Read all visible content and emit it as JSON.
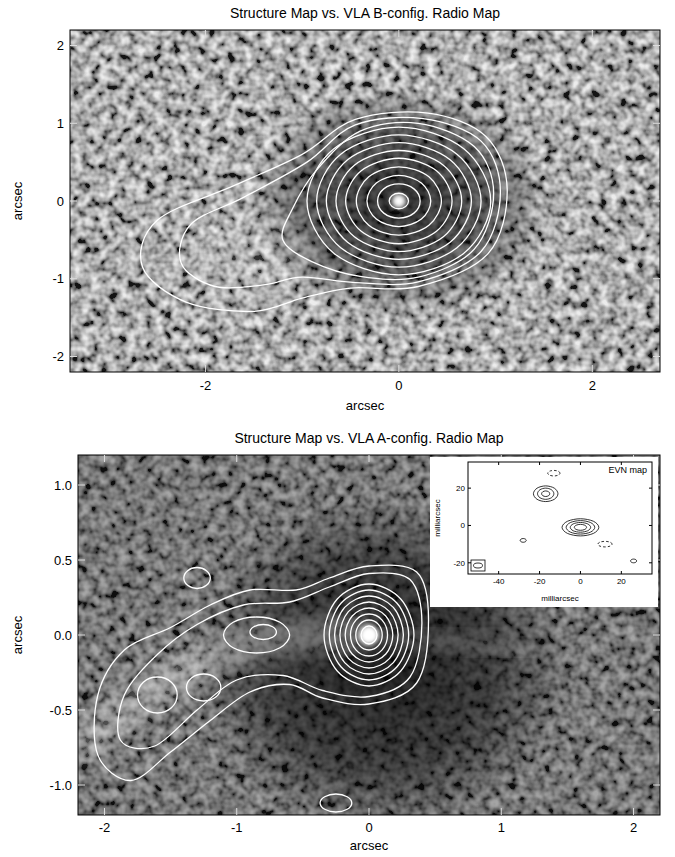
{
  "chart_data": [
    {
      "type": "contour",
      "title": "Structure Map vs. VLA B-config. Radio Map",
      "x_label": "arcsec",
      "y_label": "arcsec",
      "xlim": [
        -3.4,
        2.7
      ],
      "ylim": [
        -2.2,
        2.2
      ],
      "xticks": [
        -2,
        0,
        2
      ],
      "yticks": [
        -2,
        -1,
        0,
        1,
        2
      ],
      "color": "#ffffff",
      "contours": [
        {
          "x": [
            0.1,
            0.07,
            0,
            -0.07,
            -0.1,
            -0.07,
            0,
            0.07
          ],
          "y": [
            0,
            0.07,
            0.1,
            0.07,
            0,
            -0.07,
            -0.1,
            -0.07
          ],
          "line_style": "solid"
        },
        {
          "x": [
            0.22,
            0.156,
            0,
            -0.156,
            -0.22,
            -0.156,
            0,
            0.156
          ],
          "y": [
            0,
            0.156,
            0.22,
            0.156,
            0,
            -0.156,
            -0.22,
            -0.156
          ],
          "line_style": "solid"
        },
        {
          "x": [
            0.33,
            0.233,
            0,
            -0.233,
            -0.33,
            -0.233,
            0,
            0.233
          ],
          "y": [
            0,
            0.233,
            0.33,
            0.233,
            0,
            -0.233,
            -0.33,
            -0.233
          ],
          "line_style": "solid"
        },
        {
          "x": [
            0.44,
            0.311,
            0,
            -0.311,
            -0.44,
            -0.311,
            0,
            0.311
          ],
          "y": [
            0,
            0.311,
            0.44,
            0.311,
            0,
            -0.311,
            -0.44,
            -0.311
          ],
          "line_style": "solid"
        },
        {
          "x": [
            0.55,
            0.389,
            0,
            -0.389,
            -0.55,
            -0.389,
            0,
            0.389
          ],
          "y": [
            0,
            0.389,
            0.55,
            0.389,
            0,
            -0.389,
            -0.55,
            -0.389
          ],
          "line_style": "solid"
        },
        {
          "x": [
            0.65,
            0.46,
            0,
            -0.46,
            -0.65,
            -0.46,
            0,
            0.46
          ],
          "y": [
            0,
            0.46,
            0.65,
            0.46,
            0,
            -0.46,
            -0.65,
            -0.46
          ],
          "line_style": "solid"
        },
        {
          "x": [
            0.75,
            0.53,
            0,
            -0.53,
            -0.75,
            -0.53,
            0,
            0.53
          ],
          "y": [
            0,
            0.53,
            0.75,
            0.53,
            0,
            -0.53,
            -0.75,
            -0.53
          ],
          "line_style": "solid"
        },
        {
          "x": [
            0.85,
            0.601,
            0,
            -0.601,
            -0.85,
            -0.601,
            0,
            0.601
          ],
          "y": [
            0,
            0.601,
            0.85,
            0.601,
            0,
            -0.601,
            -0.85,
            -0.601
          ],
          "line_style": "solid"
        },
        {
          "x": [
            0.95,
            0.672,
            0,
            -0.672,
            -0.95,
            -0.672,
            0,
            0.672
          ],
          "y": [
            0,
            0.672,
            0.95,
            0.672,
            0,
            -0.672,
            -0.95,
            -0.672
          ],
          "line_style": "solid"
        },
        {
          "x": [
            0.98,
            0.78,
            0.2,
            -0.4,
            -0.85,
            -1.1,
            -1.2,
            -0.9,
            -0.4,
            0.2,
            0.78
          ],
          "y": [
            0.1,
            0.7,
            1.0,
            0.9,
            0.4,
            -0.1,
            -0.5,
            -0.78,
            -0.97,
            -0.98,
            -0.62
          ],
          "line_style": "solid"
        },
        {
          "x": [
            1.05,
            0.85,
            0.25,
            -0.45,
            -0.95,
            -1.6,
            -2.15,
            -2.25,
            -1.9,
            -1.4,
            -1.0,
            -0.45,
            0.2,
            0.85
          ],
          "y": [
            0.12,
            0.77,
            1.06,
            0.98,
            0.5,
            0.05,
            -0.3,
            -0.8,
            -1.1,
            -1.08,
            -0.98,
            -1.05,
            -1.04,
            -0.65
          ],
          "line_style": "solid"
        },
        {
          "x": [
            1.12,
            0.9,
            0.3,
            -0.45,
            -1.0,
            -1.7,
            -2.5,
            -2.65,
            -2.2,
            -1.5,
            -1.0,
            -0.5,
            0.2,
            0.92
          ],
          "y": [
            0.15,
            0.83,
            1.13,
            1.05,
            0.6,
            0.2,
            -0.25,
            -0.85,
            -1.3,
            -1.42,
            -1.25,
            -1.12,
            -1.1,
            -0.68
          ],
          "line_style": "solid"
        }
      ]
    },
    {
      "type": "contour",
      "title": "Structure Map vs. VLA A-config. Radio Map",
      "x_label": "arcsec",
      "y_label": "arcsec",
      "xlim": [
        -2.2,
        2.2
      ],
      "ylim": [
        -1.2,
        1.2
      ],
      "xticks": [
        -2,
        -1,
        0,
        1,
        2
      ],
      "yticks": [
        {
          "value": 1,
          "label": "1.0"
        },
        {
          "value": 0.5,
          "label": "0.5"
        },
        {
          "value": 0,
          "label": "0.0"
        },
        {
          "value": -0.5,
          "label": "-0.5"
        },
        {
          "value": -1,
          "label": "-1.0"
        }
      ],
      "color": "#ffffff",
      "contours": [
        {
          "x": [
            0.06,
            0.042,
            0,
            -0.042,
            -0.06,
            -0.042,
            0,
            0.042
          ],
          "y": [
            0,
            0.042,
            0.06,
            0.042,
            0,
            -0.042,
            -0.06,
            -0.042
          ],
          "line_style": "solid"
        },
        {
          "x": [
            0.1,
            0.071,
            0,
            -0.071,
            -0.1,
            -0.071,
            0,
            0.071
          ],
          "y": [
            0,
            0.071,
            0.1,
            0.071,
            0,
            -0.071,
            -0.1,
            -0.071
          ],
          "line_style": "solid"
        },
        {
          "x": [
            0.14,
            0.099,
            0,
            -0.099,
            -0.14,
            -0.099,
            0,
            0.099
          ],
          "y": [
            0,
            0.099,
            0.14,
            0.099,
            0,
            -0.099,
            -0.14,
            -0.099
          ],
          "line_style": "solid"
        },
        {
          "x": [
            0.18,
            0.127,
            0,
            -0.127,
            -0.18,
            -0.127,
            0,
            0.127
          ],
          "y": [
            0,
            0.127,
            0.18,
            0.127,
            0,
            -0.127,
            -0.18,
            -0.127
          ],
          "line_style": "solid"
        },
        {
          "x": [
            0.22,
            0.156,
            0,
            -0.156,
            -0.22,
            -0.156,
            0,
            0.156
          ],
          "y": [
            0,
            0.156,
            0.22,
            0.156,
            0,
            -0.156,
            -0.22,
            -0.156
          ],
          "line_style": "solid"
        },
        {
          "x": [
            0.26,
            0.184,
            0,
            -0.184,
            -0.26,
            -0.184,
            0,
            0.184
          ],
          "y": [
            0,
            0.184,
            0.26,
            0.184,
            0,
            -0.184,
            -0.26,
            -0.184
          ],
          "line_style": "solid"
        },
        {
          "x": [
            0.3,
            0.212,
            0,
            -0.212,
            -0.3,
            -0.212,
            0,
            0.212
          ],
          "y": [
            0,
            0.212,
            0.3,
            0.212,
            0,
            -0.212,
            -0.3,
            -0.212
          ],
          "line_style": "solid"
        },
        {
          "x": [
            0.34,
            0.24,
            0,
            -0.24,
            -0.34,
            -0.24,
            0,
            0.24
          ],
          "y": [
            0,
            0.24,
            0.34,
            0.24,
            0,
            -0.24,
            -0.34,
            -0.24
          ],
          "line_style": "solid"
        },
        {
          "x": [
            0.4,
            0.31,
            0.0,
            -0.3,
            -0.6,
            -0.95,
            -1.3,
            -1.6,
            -1.85,
            -1.88,
            -1.62,
            -1.3,
            -1.0,
            -0.65,
            -0.35,
            0.0,
            0.31
          ],
          "y": [
            0.08,
            0.37,
            0.41,
            0.32,
            0.22,
            0.2,
            0.07,
            -0.13,
            -0.4,
            -0.7,
            -0.74,
            -0.5,
            -0.3,
            -0.27,
            -0.37,
            -0.41,
            -0.28
          ],
          "line_style": "solid"
        },
        {
          "x": [
            0.45,
            0.36,
            0.0,
            -0.3,
            -0.55,
            -0.9,
            -1.2,
            -1.5,
            -1.85,
            -2.05,
            -2.05,
            -1.8,
            -1.5,
            -1.2,
            -0.9,
            -0.6,
            -0.35,
            0.0,
            0.36
          ],
          "y": [
            0.1,
            0.42,
            0.46,
            0.38,
            0.3,
            0.3,
            0.2,
            0.05,
            -0.1,
            -0.4,
            -0.8,
            -0.97,
            -0.78,
            -0.57,
            -0.38,
            -0.33,
            -0.42,
            -0.46,
            -0.32
          ],
          "line_style": "solid"
        },
        {
          "x": [
            -0.6,
            -0.673,
            -0.85,
            -1.027,
            -1.1,
            -1.027,
            -0.85,
            -0.673
          ],
          "y": [
            0,
            0.085,
            0.12,
            0.085,
            0,
            -0.085,
            -0.12,
            -0.085
          ],
          "line_style": "solid"
        },
        {
          "x": [
            -0.7,
            -0.729,
            -0.8,
            -0.871,
            -0.9,
            -0.871,
            -0.8,
            -0.729
          ],
          "y": [
            0.02,
            0.055,
            0.07,
            0.055,
            0.02,
            -0.015,
            -0.03,
            -0.015
          ],
          "line_style": "solid"
        },
        {
          "x": [
            -1.45,
            -1.494,
            -1.6,
            -1.706,
            -1.75,
            -1.706,
            -1.6,
            -1.494
          ],
          "y": [
            -0.4,
            -0.315,
            -0.28,
            -0.315,
            -0.4,
            -0.485,
            -0.52,
            -0.485
          ],
          "line_style": "solid"
        },
        {
          "x": [
            -1.12,
            -1.158,
            -1.25,
            -1.342,
            -1.38,
            -1.342,
            -1.25,
            -1.158
          ],
          "y": [
            -0.35,
            -0.286,
            -0.26,
            -0.286,
            -0.35,
            -0.414,
            -0.44,
            -0.414
          ],
          "line_style": "solid"
        },
        {
          "x": [
            -1.2,
            -1.229,
            -1.3,
            -1.371,
            -1.4,
            -1.371,
            -1.3,
            -1.229
          ],
          "y": [
            0.38,
            0.429,
            0.45,
            0.429,
            0.38,
            0.331,
            0.31,
            0.331
          ],
          "line_style": "solid"
        },
        {
          "x": [
            -0.13,
            -0.165,
            -0.25,
            -0.335,
            -0.37,
            -0.335,
            -0.25,
            -0.165
          ],
          "y": [
            -1.12,
            -1.078,
            -1.06,
            -1.078,
            -1.12,
            -1.162,
            -1.18,
            -1.162
          ],
          "line_style": "solid"
        }
      ]
    },
    {
      "type": "contour",
      "title": "EVN map",
      "x_label": "milliarcsec",
      "y_label": "milliarcsec",
      "xlim": [
        -55,
        35
      ],
      "ylim": [
        -26,
        34
      ],
      "xticks": [
        -40,
        -20,
        0,
        20
      ],
      "yticks": [
        -20,
        0,
        20
      ],
      "color": "#000000",
      "contours": [
        {
          "x": [
            3,
            2.12,
            0,
            -2.12,
            -3,
            -2.12,
            0,
            2.12
          ],
          "y": [
            -1,
            0.13,
            0.6,
            0.13,
            -1,
            -2.13,
            -2.6,
            -2.13
          ],
          "line_style": "solid"
        },
        {
          "x": [
            5,
            3.54,
            0,
            -3.54,
            -5,
            -3.54,
            0,
            3.54
          ],
          "y": [
            -1,
            0.84,
            1.6,
            0.84,
            -1,
            -2.84,
            -3.6,
            -2.84
          ],
          "line_style": "solid"
        },
        {
          "x": [
            7,
            4.95,
            0,
            -4.95,
            -7,
            -4.95,
            0,
            4.95
          ],
          "y": [
            -1,
            1.55,
            2.6,
            1.55,
            -1,
            -3.55,
            -4.6,
            -3.55
          ],
          "line_style": "solid"
        },
        {
          "x": [
            9,
            6.36,
            0,
            -6.36,
            -9,
            -6.36,
            0,
            6.36
          ],
          "y": [
            -1,
            2.25,
            3.6,
            2.25,
            -1,
            -4.25,
            -5.6,
            -4.25
          ],
          "line_style": "solid"
        },
        {
          "x": [
            -15,
            -15.59,
            -17,
            -18.41,
            -19,
            -18.41,
            -17,
            -15.59
          ],
          "y": [
            17,
            18.06,
            18.5,
            18.06,
            17,
            15.94,
            15.5,
            15.94
          ],
          "line_style": "solid"
        },
        {
          "x": [
            -13,
            -14.17,
            -17,
            -19.83,
            -21,
            -19.83,
            -17,
            -14.17
          ],
          "y": [
            17,
            19.12,
            20,
            19.12,
            17,
            14.88,
            14,
            14.88
          ],
          "line_style": "solid"
        },
        {
          "x": [
            -11,
            -12.76,
            -17,
            -21.24,
            -23,
            -21.24,
            -17,
            -12.76
          ],
          "y": [
            17,
            19.97,
            21.2,
            19.97,
            17,
            14.03,
            12.8,
            14.03
          ],
          "line_style": "solid"
        },
        {
          "x": [
            -10,
            -10.88,
            -13,
            -15.12,
            -16,
            -15.12,
            -13,
            -10.88
          ],
          "y": [
            28,
            29.06,
            29.5,
            29.06,
            28,
            26.94,
            26.5,
            26.94
          ],
          "line_style": "dashed"
        },
        {
          "x": [
            15.5,
            14.47,
            12,
            9.53,
            8.5,
            9.53,
            12,
            14.47
          ],
          "y": [
            -10,
            -8.94,
            -8.5,
            -8.94,
            -10,
            -11.06,
            -11.5,
            -11.06
          ],
          "line_style": "dashed"
        },
        {
          "x": [
            -26.5,
            -26.94,
            -28,
            -29.06,
            -29.5,
            -29.06,
            -28,
            -26.94
          ],
          "y": [
            -8,
            -7.29,
            -7,
            -7.29,
            -8,
            -8.71,
            -9,
            -8.71
          ],
          "line_style": "solid"
        },
        {
          "x": [
            27.5,
            27.06,
            26,
            24.94,
            24.5,
            24.94,
            26,
            27.06
          ],
          "y": [
            -19,
            -18.29,
            -18,
            -18.29,
            -19,
            -19.71,
            -20,
            -19.71
          ],
          "line_style": "solid"
        }
      ]
    }
  ]
}
